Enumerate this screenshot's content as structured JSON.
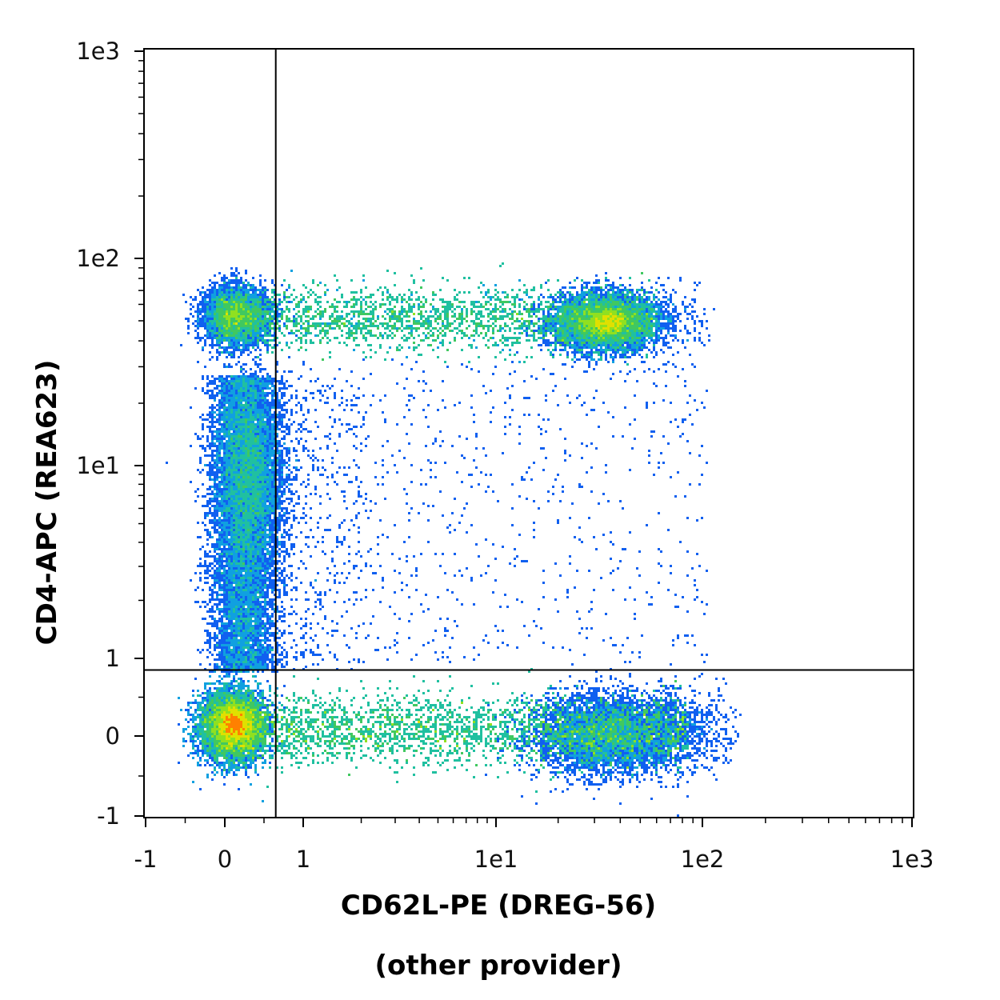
{
  "chart_data": {
    "type": "scatter",
    "subtype": "flow-cytometry-density-dot-plot",
    "title": "",
    "xlabel": "CD62L-PE (DREG-56)",
    "xlabel_line2": "(other provider)",
    "ylabel": "CD4-APC (REA623)",
    "x_scale": "biexponential",
    "y_scale": "biexponential",
    "xlim": [
      -1,
      1000
    ],
    "ylim": [
      -1,
      1000
    ],
    "x_ticks": [
      {
        "value": -1,
        "label": "-1"
      },
      {
        "value": 0,
        "label": "0"
      },
      {
        "value": 1,
        "label": "1"
      },
      {
        "value": 10,
        "label": "1e1"
      },
      {
        "value": 100,
        "label": "1e2"
      },
      {
        "value": 1000,
        "label": "1e3"
      }
    ],
    "y_ticks": [
      {
        "value": -1,
        "label": "-1"
      },
      {
        "value": 0,
        "label": "0"
      },
      {
        "value": 1,
        "label": "1"
      },
      {
        "value": 10,
        "label": "1e1"
      },
      {
        "value": 100,
        "label": "1e2"
      },
      {
        "value": 1000,
        "label": "1e3"
      }
    ],
    "quadrant_gate": {
      "x": 0.65,
      "y": 0.85
    },
    "grid": false,
    "legend": "none",
    "color_map": [
      "#1010d0",
      "#1060f0",
      "#10a0e0",
      "#20c0a0",
      "#40c860",
      "#90e020",
      "#e0e000",
      "#ff8000",
      "#ff2000"
    ],
    "populations": [
      {
        "id": "double-negative",
        "x_center": 0.1,
        "y_center": 0.1,
        "density": "highest"
      },
      {
        "id": "cd62l-positive-cd4-negative",
        "x_center": 30,
        "y_center": 0.1,
        "x_range": [
          0.5,
          100
        ],
        "density": "high"
      },
      {
        "id": "cd4-positive-cd62l-high",
        "x_center": 35,
        "y_center": 50,
        "density": "high"
      },
      {
        "id": "cd4-positive-cd62l-low",
        "x_center": 0.2,
        "y_center": 50,
        "density": "medium"
      },
      {
        "id": "cd4-positive-band",
        "x_range": [
          0.5,
          60
        ],
        "y_center": 50,
        "density": "medium"
      },
      {
        "id": "cd4-intermediate-cd62l-negative",
        "x_center": 0.3,
        "y_center": 8,
        "density": "medium"
      },
      {
        "id": "sparse-events",
        "x_range": [
          1,
          120
        ],
        "y_range": [
          1,
          30
        ],
        "density": "low"
      }
    ]
  }
}
